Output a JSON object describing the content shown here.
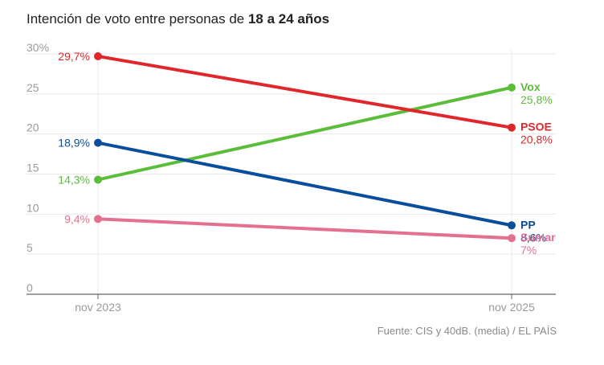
{
  "title": {
    "prefix": "Intención de voto entre personas de ",
    "emphasis": "18 a 24 años"
  },
  "source": "Fuente: CIS y 40dB. (media) / EL PAÍS",
  "chart_data": {
    "type": "line",
    "x": [
      "nov 2023",
      "nov 2025"
    ],
    "ylim": [
      0,
      30
    ],
    "yticks": [
      {
        "value": 0,
        "label": "0"
      },
      {
        "value": 5,
        "label": "5"
      },
      {
        "value": 10,
        "label": "10"
      },
      {
        "value": 15,
        "label": "15"
      },
      {
        "value": 20,
        "label": "20"
      },
      {
        "value": 25,
        "label": "25"
      },
      {
        "value": 30,
        "label": "30%"
      }
    ],
    "grid": true,
    "series": [
      {
        "name": "Vox",
        "color": "#5bbd3a",
        "values": [
          14.3,
          25.8
        ],
        "labels": [
          "14,3%",
          "25,8%"
        ]
      },
      {
        "name": "PSOE",
        "color": "#e0262b",
        "values": [
          29.7,
          20.8
        ],
        "labels": [
          "29,7%",
          "20,8%"
        ]
      },
      {
        "name": "PP",
        "color": "#0a4e9b",
        "values": [
          18.9,
          8.6
        ],
        "labels": [
          "18,9%",
          "8,6%"
        ]
      },
      {
        "name": "Sumar",
        "color": "#e3708e",
        "values": [
          9.4,
          7
        ],
        "labels": [
          "9,4%",
          "7%"
        ]
      }
    ]
  }
}
